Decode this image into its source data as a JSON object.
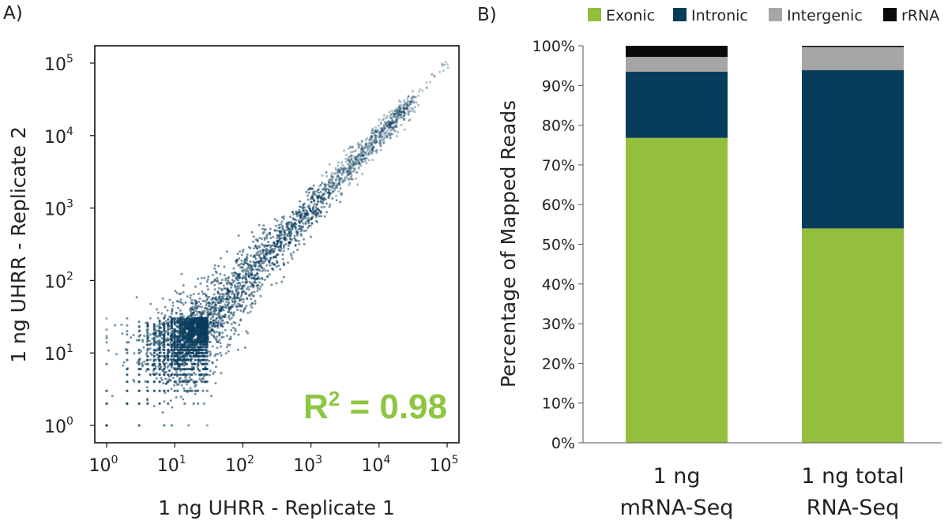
{
  "panels": {
    "a_label": "A)",
    "b_label": "B)"
  },
  "colors": {
    "point": "#0a3d5c",
    "r2": "#8dc63f",
    "exonic": "#93bf3d",
    "intronic": "#073d5b",
    "intergenic": "#a6a6a6",
    "rrna": "#0a0a0a"
  },
  "chart_data": [
    {
      "type": "scatter",
      "panel": "A",
      "xlabel": "1 ng UHRR - Replicate 1",
      "ylabel": "1 ng UHRR - Replicate 2",
      "x_scale": "log",
      "y_scale": "log",
      "xlim": [
        1,
        100000
      ],
      "ylim": [
        1,
        100000
      ],
      "x_tick_labels": [
        "10",
        "10",
        "10",
        "10",
        "10",
        "10"
      ],
      "x_tick_exponents": [
        "0",
        "1",
        "2",
        "3",
        "4",
        "5"
      ],
      "y_tick_labels": [
        "10",
        "10",
        "10",
        "10",
        "10",
        "10"
      ],
      "y_tick_exponents": [
        "0",
        "1",
        "2",
        "3",
        "4",
        "5"
      ],
      "annotation": {
        "prefix": "R",
        "sup": "2",
        "suffix": " = 0.98"
      },
      "point_trend": "points lie along y = x; wide spread at low counts, tight near high counts; discrete integer columns at low counts",
      "points_highlight": [
        {
          "x": 1,
          "y": 1
        },
        {
          "x": 1,
          "y": 30
        },
        {
          "x": 30,
          "y": 1
        },
        {
          "x": 20000,
          "y": 25000
        },
        {
          "x": 60000,
          "y": 70000
        },
        {
          "x": 90000,
          "y": 95000
        }
      ]
    },
    {
      "type": "bar",
      "panel": "B",
      "stacked": true,
      "ylabel": "Percentage of Mapped Reads",
      "ylim": [
        0,
        100
      ],
      "y_tick_labels": [
        "0%",
        "10%",
        "20%",
        "30%",
        "40%",
        "50%",
        "60%",
        "70%",
        "80%",
        "90%",
        "100%"
      ],
      "categories": [
        [
          "1 ng",
          "mRNA-Seq"
        ],
        [
          "1 ng total",
          "RNA-Seq"
        ]
      ],
      "series": [
        {
          "name": "Exonic",
          "values": [
            76.8,
            54.0
          ]
        },
        {
          "name": "Intronic",
          "values": [
            16.7,
            39.9
          ]
        },
        {
          "name": "Intergenic",
          "values": [
            3.7,
            5.8
          ]
        },
        {
          "name": "rRNA",
          "values": [
            2.8,
            0.3
          ]
        }
      ],
      "legend_position": "top"
    }
  ]
}
